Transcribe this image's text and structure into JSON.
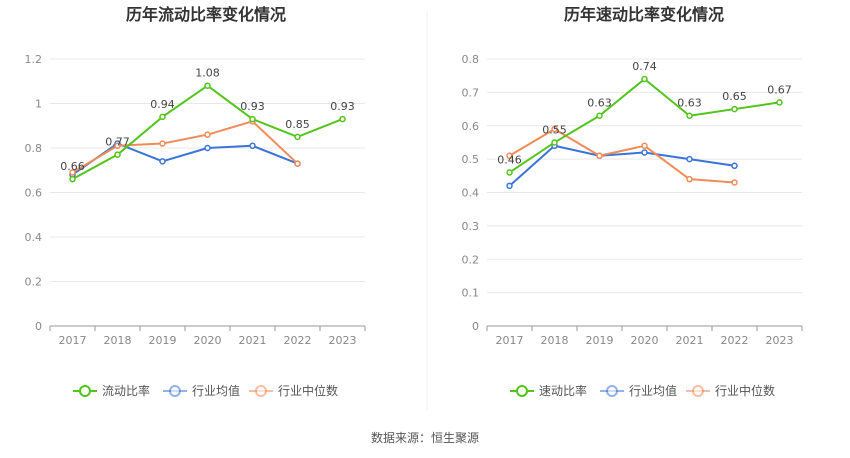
{
  "source_label": "数据来源：恒生聚源",
  "colors": {
    "company": "#52c41a",
    "industry_avg": "#3b74d9",
    "industry_median": "#f08c5a",
    "grid": "#e8e8e8",
    "axis": "#999999"
  },
  "chart_data": [
    {
      "type": "line",
      "title": "历年流动比率变化情况",
      "categories": [
        "2017",
        "2018",
        "2019",
        "2020",
        "2021",
        "2022",
        "2023"
      ],
      "ylim": [
        0,
        1.2
      ],
      "yticks": [
        "0",
        "0.2",
        "0.4",
        "0.6",
        "0.8",
        "1",
        "1.2"
      ],
      "grid": true,
      "legend_position": "bottom",
      "series": [
        {
          "name": "流动比率",
          "key": "company",
          "values": [
            0.66,
            0.77,
            0.94,
            1.08,
            0.93,
            0.85,
            0.93
          ],
          "labels": [
            "0.66",
            "0.77",
            "0.94",
            "1.08",
            "0.93",
            "0.85",
            "0.93"
          ]
        },
        {
          "name": "行业均值",
          "key": "industry_avg",
          "values": [
            0.68,
            0.82,
            0.74,
            0.8,
            0.81,
            0.73,
            null
          ]
        },
        {
          "name": "行业中位数",
          "key": "industry_median",
          "values": [
            0.69,
            0.81,
            0.82,
            0.86,
            0.92,
            0.73,
            null
          ]
        }
      ]
    },
    {
      "type": "line",
      "title": "历年速动比率变化情况",
      "categories": [
        "2017",
        "2018",
        "2019",
        "2020",
        "2021",
        "2022",
        "2023"
      ],
      "ylim": [
        0,
        0.8
      ],
      "yticks": [
        "0",
        "0.1",
        "0.2",
        "0.3",
        "0.4",
        "0.5",
        "0.6",
        "0.7",
        "0.8"
      ],
      "grid": true,
      "legend_position": "bottom",
      "series": [
        {
          "name": "速动比率",
          "key": "company",
          "values": [
            0.46,
            0.55,
            0.63,
            0.74,
            0.63,
            0.65,
            0.67
          ],
          "labels": [
            "0.46",
            "0.55",
            "0.63",
            "0.74",
            "0.63",
            "0.65",
            "0.67"
          ]
        },
        {
          "name": "行业均值",
          "key": "industry_avg",
          "values": [
            0.42,
            0.54,
            0.51,
            0.52,
            0.5,
            0.48,
            null
          ]
        },
        {
          "name": "行业中位数",
          "key": "industry_median",
          "values": [
            0.51,
            0.59,
            0.51,
            0.54,
            0.44,
            0.43,
            null
          ]
        }
      ]
    }
  ]
}
